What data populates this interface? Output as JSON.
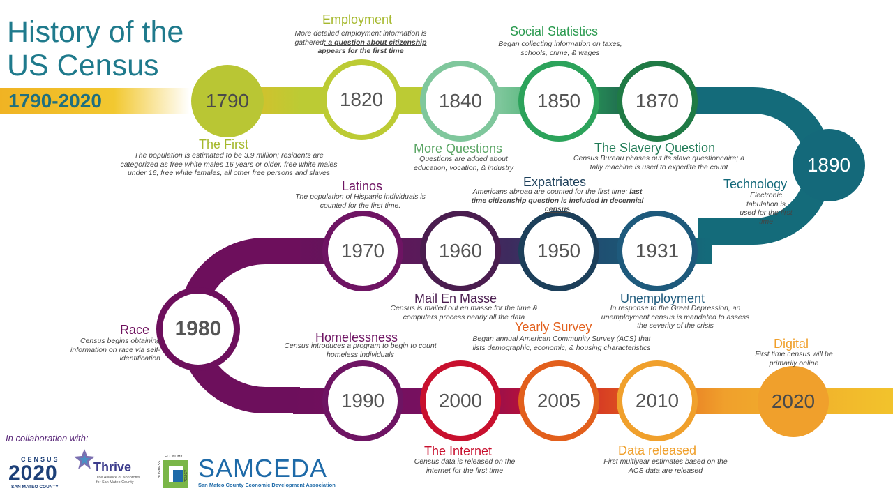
{
  "title": "History of the\nUS Census",
  "years": "1790-2020",
  "colors": {
    "title": "#1f7a8c",
    "row1_start": "#bccb34",
    "row1_end": "#1f6b4f",
    "teal": "#146b7a",
    "purple": "#6d0f5c",
    "row3_end": "#f2c32c"
  },
  "nodes": [
    {
      "year": "1790",
      "color": "#b9c634",
      "filled": true
    },
    {
      "year": "1820",
      "color": "#bccb34",
      "filled": false
    },
    {
      "year": "1840",
      "color": "#7fc79c",
      "filled": false
    },
    {
      "year": "1850",
      "color": "#2ca35b",
      "filled": false
    },
    {
      "year": "1870",
      "color": "#1f7a45",
      "filled": false
    },
    {
      "year": "1890",
      "color": "#14697a",
      "filled": true
    },
    {
      "year": "1931",
      "color": "#1e5a7c",
      "filled": false
    },
    {
      "year": "1950",
      "color": "#1c3f5a",
      "filled": false
    },
    {
      "year": "1960",
      "color": "#4a1d4f",
      "filled": false
    },
    {
      "year": "1970",
      "color": "#6e1463",
      "filled": false
    },
    {
      "year": "1980",
      "color": "#6d0f5c",
      "filled": false
    },
    {
      "year": "1990",
      "color": "#6e1463",
      "filled": false
    },
    {
      "year": "2000",
      "color": "#c8102e",
      "filled": false
    },
    {
      "year": "2005",
      "color": "#e25f1c",
      "filled": false
    },
    {
      "year": "2010",
      "color": "#f0a02c",
      "filled": false
    },
    {
      "year": "2020",
      "color": "#f0a02c",
      "filled": true
    }
  ],
  "events": [
    {
      "heading": "The First",
      "color": "#a5b82c",
      "desc": "The population is estimated to be 3.9 million; residents are categorized as free white males 16 years or older, free white males under 16, free white females, all other free persons and slaves"
    },
    {
      "heading": "Employment",
      "color": "#a5b82c",
      "desc": "More detailed employment information is gathered",
      "desc_emphasis": ": a question about citizenship appears for the first time"
    },
    {
      "heading": "More Questions",
      "color": "#5aa564",
      "desc": "Questions are added about education, vocation, & industry"
    },
    {
      "heading": "Social Statistics",
      "color": "#2a9a4f",
      "desc": "Began collecting information on taxes, schools, crime, & wages"
    },
    {
      "heading": "The Slavery Question",
      "color": "#1f7a55",
      "desc": "Census Bureau phases out its slave questionnaire; a tally machine is used to expedite the count"
    },
    {
      "heading": "Technology",
      "color": "#14697a",
      "desc": "Electronic tabulation  is used for the first time"
    },
    {
      "heading": "Unemployment",
      "color": "#1e5a7c",
      "desc": "In response to the Great Depression, an unemployment census is  mandated to assess the severity of the crisis"
    },
    {
      "heading": "Expatriates",
      "color": "#1c3f5a",
      "desc": "Americans abroad are counted for the first time;",
      "desc_emphasis": "last time citizenship question is included in decennial census"
    },
    {
      "heading": "Mail En Masse",
      "color": "#4a1d4f",
      "desc": "Census is mailed out en masse for the time & computers process nearly all the data"
    },
    {
      "heading": "Latinos",
      "color": "#6e1463",
      "desc": "The population of  Hispanic individuals is counted for the first time."
    },
    {
      "heading": "Race",
      "color": "#6d0f5c",
      "desc": "Census begins obtaining information on race via self-identification"
    },
    {
      "heading": "Homelessness",
      "color": "#6e1463",
      "desc": "Census introduces a program to begin to count homeless individuals"
    },
    {
      "heading": "The Internet",
      "color": "#c8102e",
      "desc": "Census data is released on the internet for the first time"
    },
    {
      "heading": "Yearly Survey",
      "color": "#e25f1c",
      "desc": "Began annual American Community Survey (ACS) that lists demographic, economic, & housing characteristics"
    },
    {
      "heading": "Data released",
      "color": "#f0a02c",
      "desc": "First multiyear estimates based on the ACS data are released"
    },
    {
      "heading": "Digital",
      "color": "#f0a02c",
      "desc": "First time census will be primarily online"
    }
  ],
  "collaboration": "In collaboration with:",
  "logos": {
    "census_top": "CENSUS",
    "census_year": "2020",
    "census_bottom": "SAN MATEO COUNTY",
    "thrive_name": "Thrive",
    "thrive_sub": "The Alliance of Nonprofits for San Mateo County",
    "samceda_side_1": "BUSINESS",
    "samceda_side_2": "ECONOMY",
    "samceda_side_3": "POLICY",
    "samceda_name": "SAMCEDA",
    "samceda_sub": "San Mateo County Economic Development Association"
  }
}
